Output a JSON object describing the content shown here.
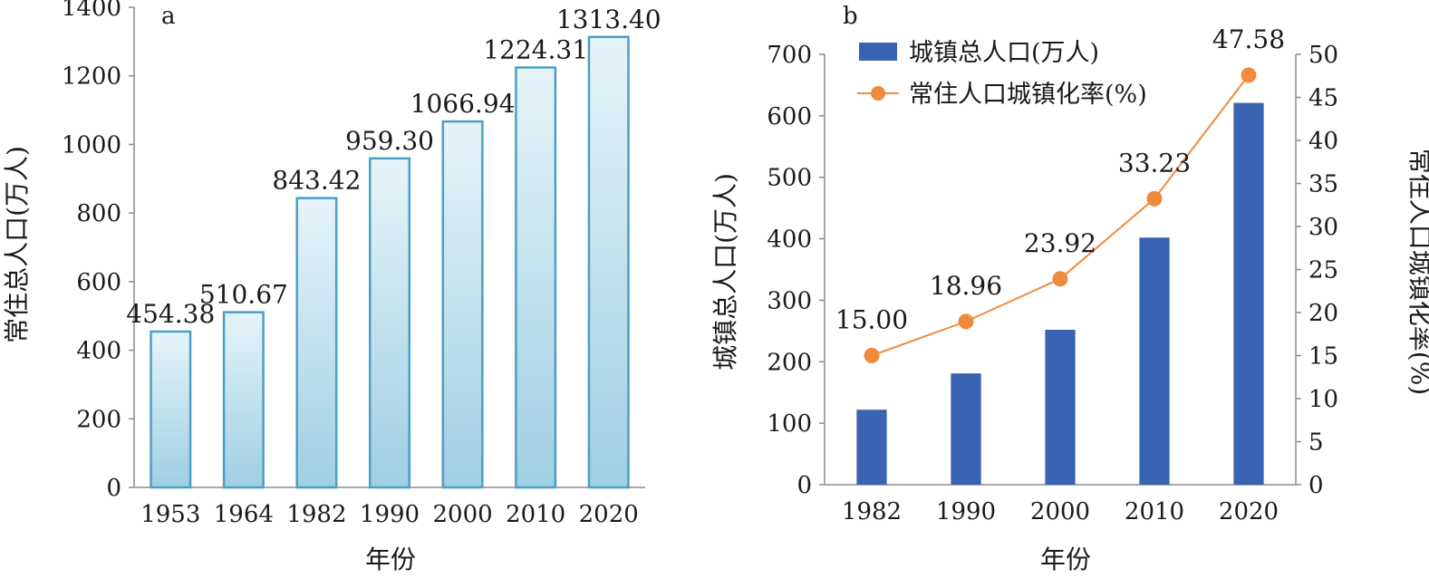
{
  "figure": {
    "panel_a_label": "a",
    "panel_b_label": "b"
  },
  "chart_data": [
    {
      "panel": "a",
      "type": "bar",
      "title": "",
      "xlabel": "年份",
      "ylabel": "常住总人口(万人)",
      "categories": [
        "1953",
        "1964",
        "1982",
        "1990",
        "2000",
        "2010",
        "2020"
      ],
      "values": [
        454.38,
        510.67,
        843.42,
        959.3,
        1066.94,
        1224.31,
        1313.4
      ],
      "value_labels": [
        "454.38",
        "510.67",
        "843.42",
        "959.30",
        "1066.94",
        "1224.31",
        "1313.40"
      ],
      "ylim": [
        0,
        1400
      ],
      "yticks": [
        0,
        200,
        400,
        600,
        800,
        1000,
        1200,
        1400
      ],
      "grid": false,
      "colors": {
        "bar_fill_top": "#e6f4fa",
        "bar_fill_bottom": "#9fcfe3",
        "bar_stroke": "#4aa0c2"
      }
    },
    {
      "panel": "b",
      "type": "bar",
      "combo": "bar+line",
      "title": "",
      "xlabel": "年份",
      "ylabel": "城镇总人口(万人)",
      "y2label": "常住人口城镇化率(%)",
      "categories": [
        "1982",
        "1990",
        "2000",
        "2010",
        "2020"
      ],
      "series": [
        {
          "name": "城镇总人口(万人)",
          "type": "bar",
          "axis": "left",
          "values": [
            122,
            181,
            252,
            402,
            621
          ]
        },
        {
          "name": "常住人口城镇化率(%)",
          "type": "line",
          "axis": "right",
          "values": [
            15.0,
            18.96,
            23.92,
            33.23,
            47.58
          ],
          "value_labels": [
            "15.00",
            "18.96",
            "23.92",
            "33.23",
            "47.58"
          ]
        }
      ],
      "ylim": [
        0,
        700
      ],
      "yticks": [
        0,
        100,
        200,
        300,
        400,
        500,
        600,
        700
      ],
      "y2lim": [
        0,
        50
      ],
      "y2ticks": [
        0,
        5,
        10,
        15,
        20,
        25,
        30,
        35,
        40,
        45,
        50
      ],
      "legend": "top-left",
      "grid": false,
      "colors": {
        "bar": "#3a64b2",
        "line": "#f08a3c",
        "marker": "#f08a3c"
      }
    }
  ]
}
